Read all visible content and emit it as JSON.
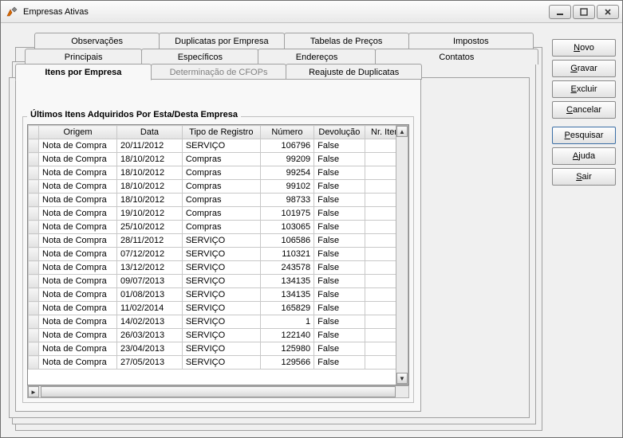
{
  "window": {
    "title": "Empresas Ativas"
  },
  "tabs_row1": [
    {
      "label": "Observações"
    },
    {
      "label": "Duplicatas por Empresa"
    },
    {
      "label": "Tabelas de Preços"
    },
    {
      "label": "Impostos"
    }
  ],
  "tabs_row2": [
    {
      "label": "Principais"
    },
    {
      "label": "Específicos"
    },
    {
      "label": "Endereços"
    },
    {
      "label": "Contatos"
    }
  ],
  "tabs_row3": [
    {
      "label": "Itens por Empresa",
      "active": true
    },
    {
      "label": "Determinação de CFOPs",
      "disabled": true
    },
    {
      "label": "Reajuste de Duplicatas"
    }
  ],
  "group_title": "Últimos Itens Adquiridos Por Esta/Desta Empresa",
  "columns": [
    "Origem",
    "Data",
    "Tipo de Registro",
    "Número",
    "Devolução",
    "Nr. Item"
  ],
  "rows": [
    [
      "Nota de Compra",
      "20/11/2012",
      "SERVIÇO",
      "106796",
      "False",
      ""
    ],
    [
      "Nota de Compra",
      "18/10/2012",
      "Compras",
      "99209",
      "False",
      ""
    ],
    [
      "Nota de Compra",
      "18/10/2012",
      "Compras",
      "99254",
      "False",
      ""
    ],
    [
      "Nota de Compra",
      "18/10/2012",
      "Compras",
      "99102",
      "False",
      ""
    ],
    [
      "Nota de Compra",
      "18/10/2012",
      "Compras",
      "98733",
      "False",
      ""
    ],
    [
      "Nota de Compra",
      "19/10/2012",
      "Compras",
      "101975",
      "False",
      ""
    ],
    [
      "Nota de Compra",
      "25/10/2012",
      "Compras",
      "103065",
      "False",
      ""
    ],
    [
      "Nota de Compra",
      "28/11/2012",
      "SERVIÇO",
      "106586",
      "False",
      ""
    ],
    [
      "Nota de Compra",
      "07/12/2012",
      "SERVIÇO",
      "110321",
      "False",
      ""
    ],
    [
      "Nota de Compra",
      "13/12/2012",
      "SERVIÇO",
      "243578",
      "False",
      ""
    ],
    [
      "Nota de Compra",
      "09/07/2013",
      "SERVIÇO",
      "134135",
      "False",
      ""
    ],
    [
      "Nota de Compra",
      "01/08/2013",
      "SERVIÇO",
      "134135",
      "False",
      ""
    ],
    [
      "Nota de Compra",
      "11/02/2014",
      "SERVIÇO",
      "165829",
      "False",
      ""
    ],
    [
      "Nota de Compra",
      "14/02/2013",
      "SERVIÇO",
      "1",
      "False",
      ""
    ],
    [
      "Nota de Compra",
      "26/03/2013",
      "SERVIÇO",
      "122140",
      "False",
      ""
    ],
    [
      "Nota de Compra",
      "23/04/2013",
      "SERVIÇO",
      "125980",
      "False",
      ""
    ],
    [
      "Nota de Compra",
      "27/05/2013",
      "SERVIÇO",
      "129566",
      "False",
      ""
    ]
  ],
  "buttons": {
    "novo": {
      "text": "Novo",
      "u": "N"
    },
    "gravar": {
      "text": "Gravar",
      "u": "G"
    },
    "excluir": {
      "text": "Excluir",
      "u": "E"
    },
    "cancelar": {
      "text": "Cancelar",
      "u": "C"
    },
    "pesquisar": {
      "text": "Pesquisar",
      "u": "P"
    },
    "ajuda": {
      "text": "Ajuda",
      "u": "A"
    },
    "sair": {
      "text": "Sair",
      "u": "S"
    }
  }
}
